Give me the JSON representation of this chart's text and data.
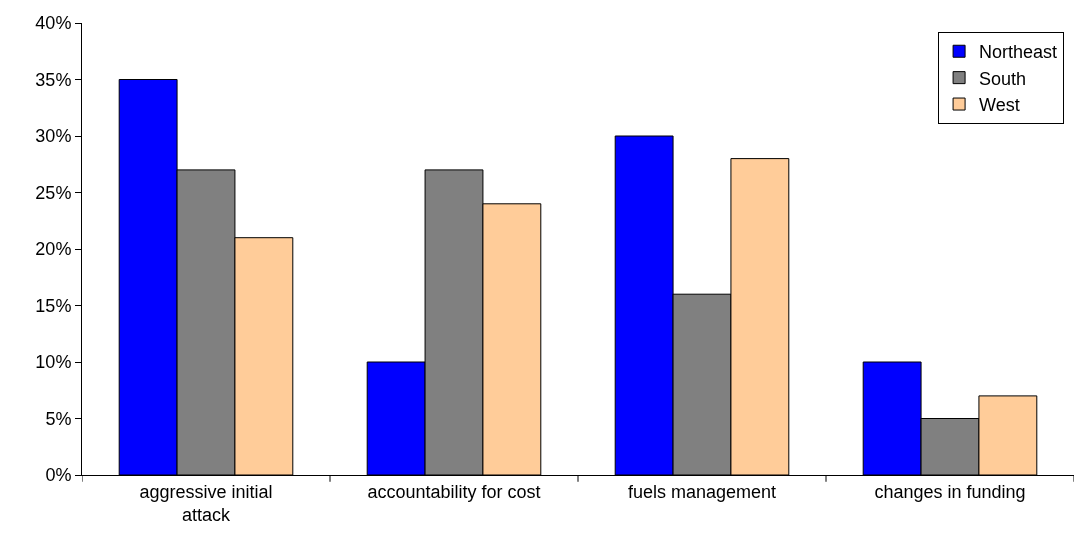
{
  "chart_data": {
    "type": "bar",
    "categories": [
      "aggressive initial attack",
      "accountability for cost",
      "fuels management",
      "changes in funding"
    ],
    "series": [
      {
        "name": "Northeast",
        "color": "#0000ff",
        "values": [
          35,
          10,
          30,
          10
        ]
      },
      {
        "name": "South",
        "color": "#808080",
        "values": [
          27,
          27,
          16,
          5
        ]
      },
      {
        "name": "West",
        "color": "#ffcc99",
        "values": [
          21,
          24,
          28,
          7
        ]
      }
    ],
    "ylim": [
      0,
      40
    ],
    "yticks": [
      {
        "value": 0,
        "label": "0%"
      },
      {
        "value": 5,
        "label": "5%"
      },
      {
        "value": 10,
        "label": "10%"
      },
      {
        "value": 15,
        "label": "15%"
      },
      {
        "value": 20,
        "label": "20%"
      },
      {
        "value": 25,
        "label": "25%"
      },
      {
        "value": 30,
        "label": "30%"
      },
      {
        "value": 35,
        "label": "35%"
      },
      {
        "value": 40,
        "label": "40%"
      }
    ],
    "legend": "top right"
  }
}
